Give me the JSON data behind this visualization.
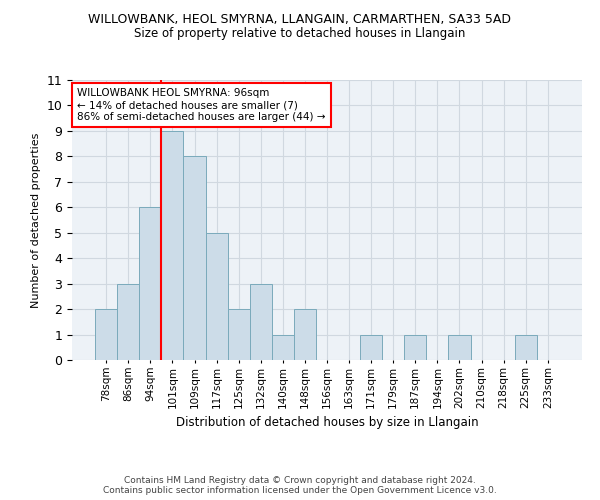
{
  "title1": "WILLOWBANK, HEOL SMYRNA, LLANGAIN, CARMARTHEN, SA33 5AD",
  "title2": "Size of property relative to detached houses in Llangain",
  "xlabel": "Distribution of detached houses by size in Llangain",
  "ylabel": "Number of detached properties",
  "categories": [
    "78sqm",
    "86sqm",
    "94sqm",
    "101sqm",
    "109sqm",
    "117sqm",
    "125sqm",
    "132sqm",
    "140sqm",
    "148sqm",
    "156sqm",
    "163sqm",
    "171sqm",
    "179sqm",
    "187sqm",
    "194sqm",
    "202sqm",
    "210sqm",
    "218sqm",
    "225sqm",
    "233sqm"
  ],
  "values": [
    2,
    3,
    6,
    9,
    8,
    5,
    2,
    3,
    1,
    2,
    0,
    0,
    1,
    0,
    1,
    0,
    1,
    0,
    0,
    1,
    0
  ],
  "bar_color": "#ccdce8",
  "bar_edge_color": "#7aaabb",
  "redline_x": 2.5,
  "annotation_text": "WILLOWBANK HEOL SMYRNA: 96sqm\n← 14% of detached houses are smaller (7)\n86% of semi-detached houses are larger (44) →",
  "annotation_box_color": "white",
  "annotation_box_edge_color": "red",
  "redline_color": "red",
  "ylim": [
    0,
    11
  ],
  "yticks": [
    0,
    1,
    2,
    3,
    4,
    5,
    6,
    7,
    8,
    9,
    10,
    11
  ],
  "footer1": "Contains HM Land Registry data © Crown copyright and database right 2024.",
  "footer2": "Contains public sector information licensed under the Open Government Licence v3.0.",
  "grid_color": "#d0d8e0",
  "background_color": "#edf2f7"
}
